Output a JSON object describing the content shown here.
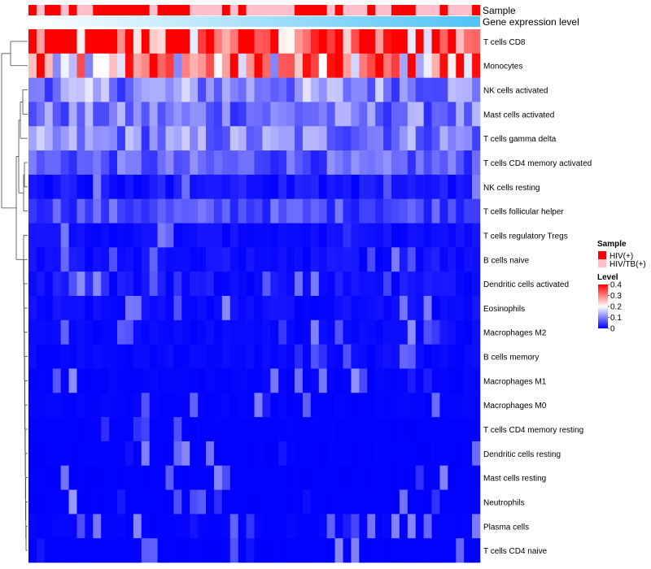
{
  "chart_data": {
    "type": "heatmap",
    "title": "",
    "annotation_rows": [
      "Sample",
      "Gene expression level"
    ],
    "rows": [
      "T cells CD8",
      "Monocytes",
      "NK cells activated",
      "Mast cells activated",
      "T cells gamma delta",
      "T cells CD4 memory activated",
      "NK cells resting",
      "T cells follicular helper",
      "T cells regulatory  Tregs",
      "B cells naive",
      "Dendritic cells activated",
      "Eosinophils",
      "Macrophages M2",
      "B cells memory",
      "Macrophages M1",
      "Macrophages M0",
      "T cells CD4 memory resting",
      "Dendritic cells resting",
      "Mast cells resting",
      "Neutrophils",
      "Plasma cells",
      "T cells CD4 naive"
    ],
    "row_means": [
      0.37,
      0.28,
      0.11,
      0.09,
      0.1,
      0.07,
      0.05,
      0.06,
      0.03,
      0.04,
      0.05,
      0.03,
      0.02,
      0.02,
      0.01,
      0.01,
      0.004,
      0.004,
      0.002,
      0.002,
      0.01,
      0.003
    ],
    "n_samples": 56,
    "sample_groups": [
      "HIV(+)",
      "HIV/TB(+)",
      "HIV(+)",
      "HIV(+)",
      "HIV/TB(+)",
      "HIV(+)",
      "HIV/TB(+)",
      "HIV/TB(+)",
      "HIV(+)",
      "HIV(+)",
      "HIV(+)",
      "HIV(+)",
      "HIV(+)",
      "HIV(+)",
      "HIV(+)",
      "HIV/TB(+)",
      "HIV(+)",
      "HIV(+)",
      "HIV(+)",
      "HIV(+)",
      "HIV/TB(+)",
      "HIV/TB(+)",
      "HIV/TB(+)",
      "HIV/TB(+)",
      "HIV(+)",
      "HIV/TB(+)",
      "HIV(+)",
      "HIV/TB(+)",
      "HIV/TB(+)",
      "HIV/TB(+)",
      "HIV/TB(+)",
      "HIV/TB(+)",
      "HIV/TB(+)",
      "HIV(+)",
      "HIV(+)",
      "HIV(+)",
      "HIV(+)",
      "HIV/TB(+)",
      "HIV(+)",
      "HIV/TB(+)",
      "HIV/TB(+)",
      "HIV/TB(+)",
      "HIV(+)",
      "HIV/TB(+)",
      "HIV/TB(+)",
      "HIV(+)",
      "HIV(+)",
      "HIV(+)",
      "HIV/TB(+)",
      "HIV/TB(+)",
      "HIV/TB(+)",
      "HIV(+)",
      "HIV/TB(+)",
      "HIV/TB(+)",
      "HIV/TB(+)",
      "HIV(+)"
    ],
    "legend_sample": {
      "title": "Sample",
      "entries": [
        {
          "label": "HIV(+)",
          "color": "#ff0000"
        },
        {
          "label": "HIV/TB(+)",
          "color": "#ffc0cb"
        }
      ]
    },
    "legend_level": {
      "title": "Level",
      "ticks": [
        0.4,
        0.3,
        0.2,
        0.1,
        0
      ],
      "tick_labels": [
        "0.4",
        "0.3",
        "0.2",
        "0.1",
        "0"
      ],
      "range": [
        0,
        0.4
      ]
    },
    "color_scale": [
      "#0000ff",
      "#ffffff",
      "#ff0000"
    ],
    "expression_gradient": [
      "#ffffff",
      "#00bfff"
    ]
  }
}
